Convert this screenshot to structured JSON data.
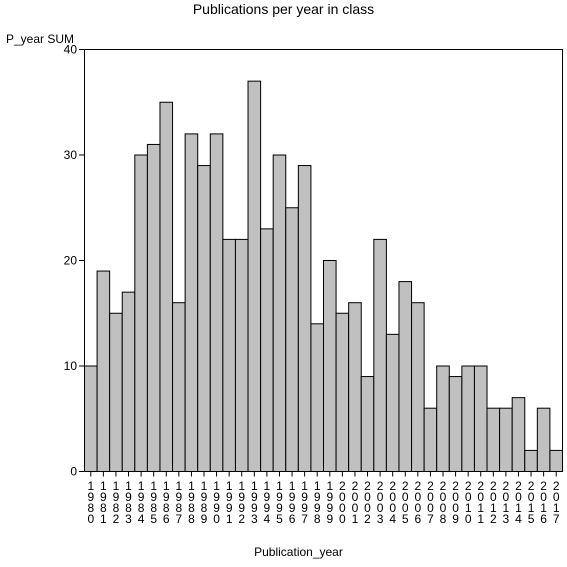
{
  "chart_data": {
    "type": "bar",
    "title": "Publications per year in class",
    "ylabel": "P_year SUM",
    "xlabel": "Publication_year",
    "ylim": [
      0,
      40
    ],
    "yticks": [
      0,
      10,
      20,
      30,
      40
    ],
    "grid": false,
    "categories": [
      "1980",
      "1981",
      "1982",
      "1983",
      "1984",
      "1985",
      "1986",
      "1987",
      "1988",
      "1989",
      "1990",
      "1991",
      "1992",
      "1993",
      "1994",
      "1995",
      "1996",
      "1997",
      "1998",
      "1999",
      "2000",
      "2001",
      "2002",
      "2003",
      "2004",
      "2005",
      "2006",
      "2007",
      "2008",
      "2009",
      "2010",
      "2011",
      "2012",
      "2013",
      "2014",
      "2015",
      "2016",
      "2017"
    ],
    "values": [
      10,
      19,
      15,
      17,
      30,
      31,
      35,
      16,
      32,
      29,
      32,
      22,
      22,
      37,
      23,
      30,
      25,
      29,
      14,
      20,
      15,
      16,
      9,
      22,
      13,
      18,
      16,
      6,
      10,
      9,
      10,
      10,
      6,
      6,
      7,
      2,
      6,
      2
    ],
    "bar_color": "#c0c0c0",
    "edge_color": "#000000"
  }
}
